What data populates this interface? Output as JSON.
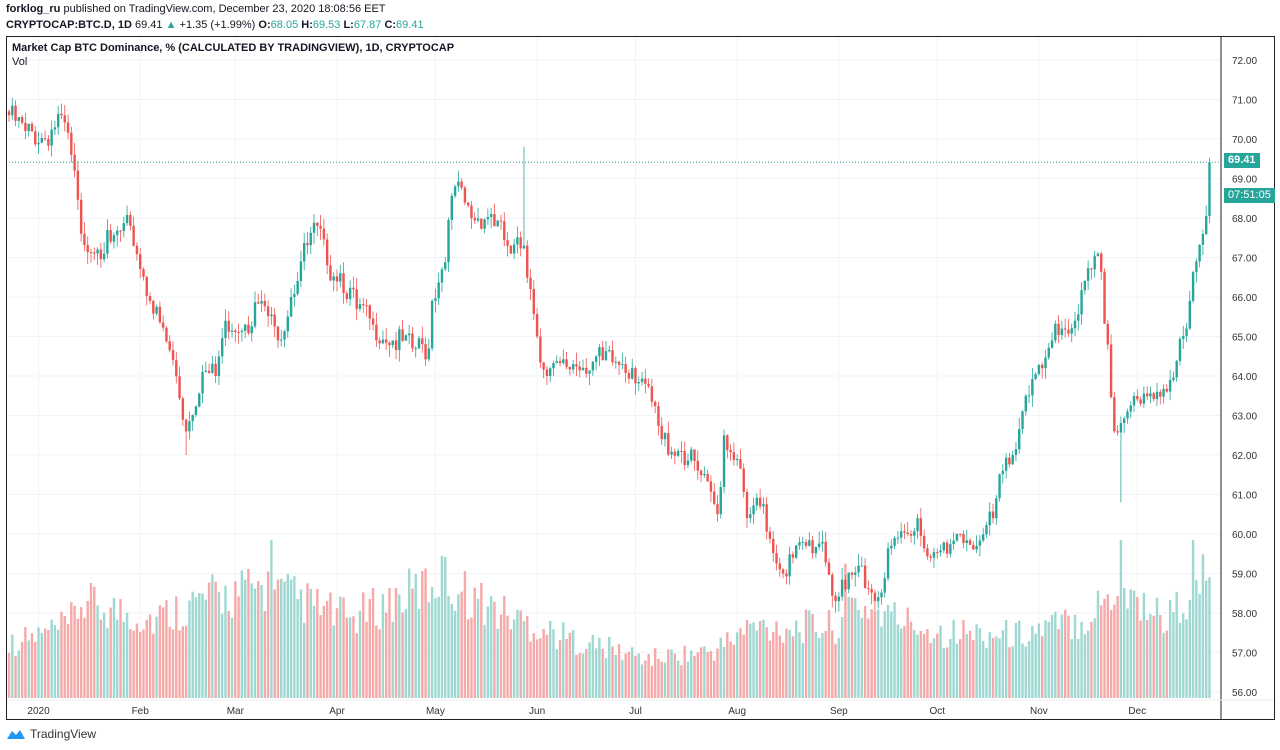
{
  "header": {
    "author": "forklog_ru",
    "published": "published on TradingView.com, December 23, 2020 18:08:56 EET",
    "symbol": "CRYPTOCAP:BTC.D, 1D",
    "last": "69.41",
    "change": "+1.35 (+1.99%)",
    "o_label": "O:",
    "o": "68.05",
    "h_label": "H:",
    "h": "69.53",
    "l_label": "L:",
    "l": "67.87",
    "c_label": "C:",
    "c": "69.41"
  },
  "legend": {
    "title": "Market Cap BTC Dominance, % (CALCULATED BY TRADINGVIEW), 1D, CRYPTOCAP",
    "volume": "Vol"
  },
  "price_tag": "69.41",
  "countdown": "07:51:05",
  "footer": {
    "brand": "TradingView"
  },
  "colors": {
    "up": "#26a69a",
    "down": "#ef5350",
    "up_volume": "#9fd8d2",
    "down_volume": "#f5a9a8",
    "grid": "#f0f3fa"
  },
  "chart_data": {
    "type": "candlestick",
    "interval": "1D",
    "date_range": [
      "2019-12-23",
      "2020-12-23"
    ],
    "ylim": [
      56,
      72
    ],
    "y_ticks": [
      "56.00",
      "57.00",
      "58.00",
      "59.00",
      "60.00",
      "61.00",
      "62.00",
      "63.00",
      "64.00",
      "65.00",
      "66.00",
      "67.00",
      "68.00",
      "69.00",
      "70.00",
      "71.00",
      "72.00"
    ],
    "x_ticks": [
      {
        "label": "2020",
        "date": "2020-01-01"
      },
      {
        "label": "Feb",
        "date": "2020-02-01"
      },
      {
        "label": "Mar",
        "date": "2020-03-01"
      },
      {
        "label": "Apr",
        "date": "2020-04-01"
      },
      {
        "label": "May",
        "date": "2020-05-01"
      },
      {
        "label": "Jun",
        "date": "2020-06-01"
      },
      {
        "label": "Jul",
        "date": "2020-07-01"
      },
      {
        "label": "Aug",
        "date": "2020-08-01"
      },
      {
        "label": "Sep",
        "date": "2020-09-01"
      },
      {
        "label": "Oct",
        "date": "2020-10-01"
      },
      {
        "label": "Nov",
        "date": "2020-11-01"
      },
      {
        "label": "Dec",
        "date": "2020-12-01"
      }
    ],
    "grid": true,
    "close_points": [
      [
        "2019-12-23",
        70.6
      ],
      [
        "2019-12-28",
        70.2
      ],
      [
        "2020-01-03",
        70.0
      ],
      [
        "2020-01-08",
        70.6
      ],
      [
        "2020-01-11",
        69.6
      ],
      [
        "2020-01-14",
        67.6
      ],
      [
        "2020-01-19",
        67.2
      ],
      [
        "2020-01-23",
        67.4
      ],
      [
        "2020-01-29",
        67.8
      ],
      [
        "2020-02-04",
        65.9
      ],
      [
        "2020-02-11",
        64.4
      ],
      [
        "2020-02-15",
        62.6
      ],
      [
        "2020-02-20",
        64.1
      ],
      [
        "2020-02-24",
        64.0
      ],
      [
        "2020-02-27",
        65.4
      ],
      [
        "2020-03-04",
        65.3
      ],
      [
        "2020-03-09",
        65.9
      ],
      [
        "2020-03-14",
        64.9
      ],
      [
        "2020-03-18",
        66.0
      ],
      [
        "2020-03-21",
        66.9
      ],
      [
        "2020-03-26",
        67.8
      ],
      [
        "2020-03-29",
        66.8
      ],
      [
        "2020-04-02",
        66.6
      ],
      [
        "2020-04-07",
        65.7
      ],
      [
        "2020-04-12",
        65.3
      ],
      [
        "2020-04-18",
        64.9
      ],
      [
        "2020-04-24",
        64.7
      ],
      [
        "2020-04-29",
        64.7
      ],
      [
        "2020-04-30",
        65.9
      ],
      [
        "2020-05-03",
        66.7
      ],
      [
        "2020-05-07",
        68.8
      ],
      [
        "2020-05-12",
        68.0
      ],
      [
        "2020-05-18",
        68.1
      ],
      [
        "2020-05-24",
        67.1
      ],
      [
        "2020-05-28",
        67.3
      ],
      [
        "2020-05-30",
        66.2
      ],
      [
        "2020-06-01",
        65.0
      ],
      [
        "2020-06-04",
        64.0
      ],
      [
        "2020-06-12",
        64.3
      ],
      [
        "2020-06-21",
        64.4
      ],
      [
        "2020-06-27",
        64.3
      ],
      [
        "2020-06-30",
        64.2
      ],
      [
        "2020-07-04",
        63.8
      ],
      [
        "2020-07-09",
        62.4
      ],
      [
        "2020-07-15",
        62.1
      ],
      [
        "2020-07-20",
        61.6
      ],
      [
        "2020-07-26",
        60.5
      ],
      [
        "2020-07-28",
        62.5
      ],
      [
        "2020-08-01",
        61.9
      ],
      [
        "2020-08-04",
        60.4
      ],
      [
        "2020-08-08",
        60.7
      ],
      [
        "2020-08-15",
        59.0
      ],
      [
        "2020-08-18",
        59.4
      ],
      [
        "2020-08-22",
        59.7
      ],
      [
        "2020-08-27",
        59.8
      ],
      [
        "2020-08-31",
        58.3
      ],
      [
        "2020-09-03",
        58.6
      ],
      [
        "2020-09-08",
        59.2
      ],
      [
        "2020-09-12",
        58.3
      ],
      [
        "2020-09-17",
        59.7
      ],
      [
        "2020-09-22",
        60.0
      ],
      [
        "2020-09-25",
        60.4
      ],
      [
        "2020-09-29",
        59.4
      ],
      [
        "2020-10-04",
        59.5
      ],
      [
        "2020-10-08",
        60.0
      ],
      [
        "2020-10-13",
        59.7
      ],
      [
        "2020-10-18",
        60.4
      ],
      [
        "2020-10-21",
        61.6
      ],
      [
        "2020-10-24",
        62.0
      ],
      [
        "2020-10-28",
        63.5
      ],
      [
        "2020-11-02",
        64.2
      ],
      [
        "2020-11-05",
        64.9
      ],
      [
        "2020-11-08",
        65.2
      ],
      [
        "2020-11-12",
        65.4
      ],
      [
        "2020-11-17",
        66.7
      ],
      [
        "2020-11-19",
        67.1
      ],
      [
        "2020-11-22",
        64.8
      ],
      [
        "2020-11-24",
        62.6
      ],
      [
        "2020-11-28",
        63.1
      ],
      [
        "2020-12-02",
        63.3
      ],
      [
        "2020-12-07",
        63.6
      ],
      [
        "2020-12-11",
        63.9
      ],
      [
        "2020-12-16",
        65.2
      ],
      [
        "2020-12-19",
        66.9
      ],
      [
        "2020-12-22",
        68.05
      ],
      [
        "2020-12-23",
        69.41
      ]
    ],
    "notable_highs": [
      [
        "2020-01-08",
        70.9
      ],
      [
        "2020-02-15",
        62.0
      ],
      [
        "2020-05-28",
        69.8
      ],
      [
        "2020-11-26",
        60.8
      ]
    ],
    "last_candle": {
      "date": "2020-12-23",
      "open": 68.05,
      "high": 69.53,
      "low": 67.87,
      "close": 69.41
    },
    "volume_relative": [
      [
        "2019-12-23",
        0.34
      ],
      [
        "2020-01-10",
        0.45
      ],
      [
        "2020-01-14",
        0.6
      ],
      [
        "2020-02-05",
        0.5
      ],
      [
        "2020-02-20",
        0.62
      ],
      [
        "2020-03-10",
        0.7
      ],
      [
        "2020-04-05",
        0.5
      ],
      [
        "2020-05-03",
        0.75
      ],
      [
        "2020-05-20",
        0.55
      ],
      [
        "2020-06-10",
        0.38
      ],
      [
        "2020-07-05",
        0.25
      ],
      [
        "2020-07-25",
        0.3
      ],
      [
        "2020-08-05",
        0.45
      ],
      [
        "2020-08-31",
        0.45
      ],
      [
        "2020-09-05",
        0.6
      ],
      [
        "2020-10-01",
        0.42
      ],
      [
        "2020-10-25",
        0.4
      ],
      [
        "2020-11-15",
        0.5
      ],
      [
        "2020-11-25",
        0.7
      ],
      [
        "2020-12-10",
        0.5
      ],
      [
        "2020-12-23",
        0.8
      ]
    ],
    "volume_spikes": [
      [
        "2020-03-12",
        1.0
      ],
      [
        "2020-05-03",
        0.9
      ],
      [
        "2020-09-03",
        0.85
      ],
      [
        "2020-11-26",
        1.0
      ],
      [
        "2020-12-18",
        1.0
      ]
    ]
  }
}
